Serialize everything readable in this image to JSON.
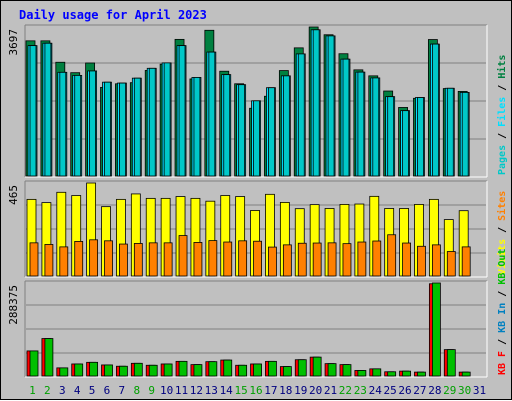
{
  "title": "Daily usage for April 2023",
  "colors": {
    "background": "#c0c0c0",
    "title": "#0000ff",
    "hits": "#008040",
    "files": "#00e0ff",
    "pages": "#00c8c8",
    "visits": "#ffff00",
    "sites": "#ff8000",
    "kb_in": "#0080c0",
    "kb_out": "#00c000",
    "kb_f": "#ff0000",
    "weekend_label": "#00a000",
    "weekday_label": "#000080"
  },
  "chart_data": [
    {
      "type": "bar",
      "panel": "top",
      "ymax_label": "3697",
      "ylim": [
        0,
        3697
      ],
      "legend": [
        {
          "text": "Pages",
          "color_key": "pages"
        },
        {
          "text": " / ",
          "color_key": "sep"
        },
        {
          "text": "Files",
          "color_key": "files"
        },
        {
          "text": " / ",
          "color_key": "sep"
        },
        {
          "text": "Hits",
          "color_key": "hits"
        }
      ],
      "categories": [
        "1",
        "2",
        "3",
        "4",
        "5",
        "6",
        "7",
        "8",
        "9",
        "10",
        "11",
        "12",
        "13",
        "14",
        "15",
        "16",
        "17",
        "18",
        "19",
        "20",
        "21",
        "22",
        "23",
        "24",
        "25",
        "26",
        "27",
        "28",
        "29",
        "30",
        "31"
      ],
      "series": [
        {
          "name": "Hits",
          "values": [
            3356,
            3356,
            2828,
            2571,
            2810,
            2209,
            2297,
            2325,
            2626,
            2781,
            3392,
            2417,
            3616,
            2607,
            2298,
            1694,
            1990,
            2623,
            3183,
            3697,
            3506,
            3038,
            2641,
            2493,
            2119,
            1714,
            1940,
            3388,
            2179,
            2110,
            0
          ]
        },
        {
          "name": "Files",
          "values": [
            3238,
            3297,
            2580,
            2504,
            2614,
            2337,
            2315,
            2436,
            2679,
            2813,
            3238,
            2454,
            3079,
            2523,
            2275,
            1878,
            2201,
            2493,
            3034,
            3628,
            3478,
            2905,
            2585,
            2442,
            1980,
            1635,
            1959,
            3276,
            2187,
            2085,
            0
          ]
        },
        {
          "name": "Pages",
          "values": [
            3238,
            3297,
            2580,
            2504,
            2614,
            2337,
            2315,
            2436,
            2679,
            2813,
            3238,
            2454,
            3079,
            2523,
            2275,
            1878,
            2201,
            2493,
            3034,
            3628,
            3478,
            2905,
            2585,
            2442,
            1980,
            1635,
            1959,
            3276,
            2187,
            2085,
            0
          ]
        }
      ]
    },
    {
      "type": "bar",
      "panel": "middle",
      "ymax_label": "465",
      "ylim": [
        0,
        465
      ],
      "legend": [
        {
          "text": "Visits",
          "color_key": "visits"
        },
        {
          "text": " / ",
          "color_key": "sep"
        },
        {
          "text": "Sites",
          "color_key": "sites"
        }
      ],
      "categories": [
        "1",
        "2",
        "3",
        "4",
        "5",
        "6",
        "7",
        "8",
        "9",
        "10",
        "11",
        "12",
        "13",
        "14",
        "15",
        "16",
        "17",
        "18",
        "19",
        "20",
        "21",
        "22",
        "23",
        "24",
        "25",
        "26",
        "27",
        "28",
        "29",
        "30",
        "31"
      ],
      "series": [
        {
          "name": "Visits",
          "values": [
            384,
            368,
            419,
            403,
            465,
            348,
            384,
            411,
            389,
            389,
            398,
            389,
            375,
            403,
            398,
            329,
            409,
            369,
            338,
            358,
            339,
            359,
            361,
            399,
            339,
            339,
            359,
            384,
            284,
            328,
            0
          ]
        },
        {
          "name": "Sites",
          "values": [
            169,
            161,
            149,
            176,
            184,
            179,
            163,
            166,
            169,
            169,
            205,
            171,
            180,
            173,
            179,
            177,
            148,
            159,
            167,
            168,
            169,
            165,
            173,
            178,
            209,
            168,
            152,
            159,
            126,
            149,
            0
          ]
        }
      ]
    },
    {
      "type": "bar",
      "panel": "bottom",
      "ymax_label": "288375",
      "ylim": [
        0,
        288375
      ],
      "legend": [
        {
          "text": "KB F",
          "color_key": "kb_f"
        },
        {
          "text": " / ",
          "color_key": "sep"
        },
        {
          "text": "KB In",
          "color_key": "kb_in"
        },
        {
          "text": " / ",
          "color_key": "sep"
        },
        {
          "text": "KB Out",
          "color_key": "kb_out"
        }
      ],
      "categories": [
        "1",
        "2",
        "3",
        "4",
        "5",
        "6",
        "7",
        "8",
        "9",
        "10",
        "11",
        "12",
        "13",
        "14",
        "15",
        "16",
        "17",
        "18",
        "19",
        "20",
        "21",
        "22",
        "23",
        "24",
        "25",
        "26",
        "27",
        "28",
        "29",
        "30",
        "31"
      ],
      "series": [
        {
          "name": "KB F",
          "values": [
            80000,
            118000,
            28000,
            40000,
            45000,
            37000,
            33000,
            42000,
            36000,
            40000,
            48000,
            38000,
            47000,
            52000,
            36000,
            40000,
            48000,
            32000,
            53000,
            61000,
            41000,
            38000,
            20000,
            25000,
            16000,
            18000,
            15000,
            286000,
            84000,
            15000,
            0
          ]
        },
        {
          "name": "KB Out",
          "values": [
            80000,
            118000,
            28000,
            40000,
            45000,
            37000,
            33000,
            42000,
            36000,
            40000,
            48000,
            38000,
            47000,
            52000,
            36000,
            40000,
            48000,
            32000,
            53000,
            61000,
            41000,
            38000,
            20000,
            25000,
            16000,
            18000,
            15000,
            288375,
            84000,
            15000,
            0
          ]
        }
      ]
    }
  ],
  "x_label_styles": [
    "weekend",
    "weekend",
    "weekday",
    "weekday",
    "weekday",
    "weekday",
    "weekday",
    "weekend",
    "weekend",
    "weekday",
    "weekday",
    "weekday",
    "weekday",
    "weekday",
    "weekend",
    "weekend",
    "weekday",
    "weekday",
    "weekday",
    "weekday",
    "weekday",
    "weekend",
    "weekend",
    "weekday",
    "weekday",
    "weekday",
    "weekday",
    "weekday",
    "weekend",
    "weekend",
    "weekday"
  ]
}
